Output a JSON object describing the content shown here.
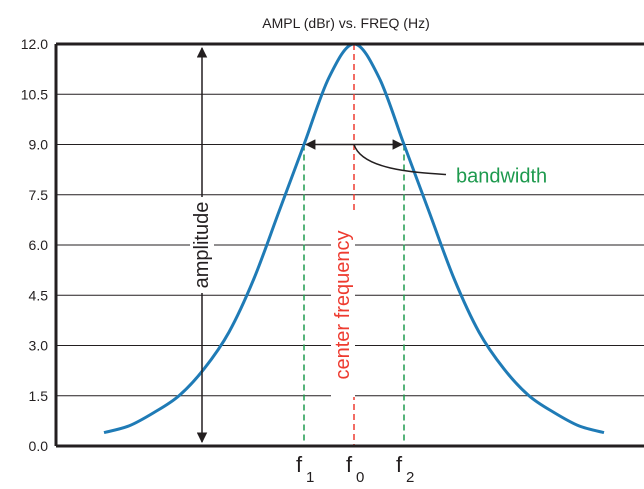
{
  "chart_data": {
    "type": "line",
    "title": "AMPL (dBr) vs. FREQ (Hz)",
    "xlabel": "",
    "ylabel": "",
    "ylim": [
      0,
      12
    ],
    "yticks": [
      "0.0",
      "1.5",
      "3.0",
      "4.5",
      "6.0",
      "7.5",
      "9.0",
      "10.5",
      "12.0"
    ],
    "grid": true,
    "x": [
      -1.0,
      -0.9,
      -0.8,
      -0.7,
      -0.6,
      -0.5,
      -0.4,
      -0.3,
      -0.2,
      -0.1,
      0.0,
      0.1,
      0.2,
      0.3,
      0.4,
      0.5,
      0.6,
      0.7,
      0.8,
      0.9,
      1.0
    ],
    "series": [
      {
        "values": [
          0.4,
          0.6,
          1.0,
          1.5,
          2.3,
          3.4,
          5.0,
          7.0,
          9.0,
          11.0,
          12.0,
          11.0,
          9.0,
          7.0,
          5.0,
          3.4,
          2.3,
          1.5,
          1.0,
          0.6,
          0.4
        ]
      }
    ],
    "markers": {
      "f1": {
        "x": -0.2,
        "label": "f",
        "sub": "1"
      },
      "f0": {
        "x": 0.0,
        "label": "f",
        "sub": "0"
      },
      "f2": {
        "x": 0.2,
        "label": "f",
        "sub": "2"
      }
    },
    "bandwidth_level": 9.0,
    "annotations": {
      "amplitude": "amplitude",
      "center_frequency": "center frequency",
      "bandwidth": "bandwidth"
    },
    "colors": {
      "curve": "#1f7bb6",
      "axis": "#231f20",
      "grid": "#231f20",
      "center": "#ee3b30",
      "bandwidth": "#1e9a4e"
    }
  }
}
